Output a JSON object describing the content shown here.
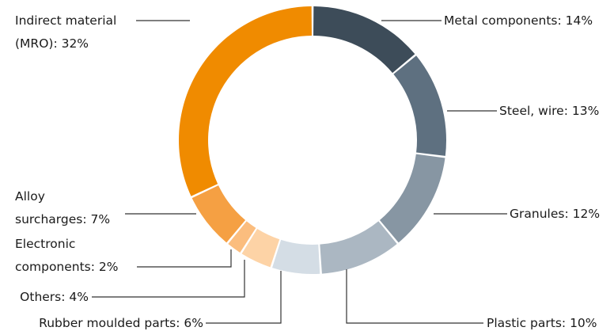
{
  "chart_data": {
    "type": "pie",
    "subtype": "donut",
    "categories": [
      "Metal components",
      "Steel, wire",
      "Granules",
      "Plastic parts",
      "Rubber moulded parts",
      "Others",
      "Electronic components",
      "Alloy surcharges",
      "Indirect material (MRO)"
    ],
    "values": [
      14,
      13,
      12,
      10,
      6,
      4,
      2,
      7,
      32
    ],
    "unit": "%",
    "colors": [
      "#3d4c59",
      "#5e7080",
      "#8796a3",
      "#abb7c2",
      "#d4dde5",
      "#fdd3a6",
      "#fbbd7e",
      "#f5a043",
      "#f08b00"
    ],
    "labels": [
      {
        "lines": [
          "Metal components: 14%"
        ]
      },
      {
        "lines": [
          "Steel, wire: 13%"
        ]
      },
      {
        "lines": [
          "Granules: 12%"
        ]
      },
      {
        "lines": [
          "Plastic parts: 10%"
        ]
      },
      {
        "lines": [
          "Rubber moulded parts: 6%"
        ]
      },
      {
        "lines": [
          "Others: 4%"
        ]
      },
      {
        "lines": [
          "Electronic",
          "components: 2%"
        ]
      },
      {
        "lines": [
          "Alloy",
          "surcharges: 7%"
        ]
      },
      {
        "lines": [
          "Indirect material",
          "(MRO): 32%"
        ]
      }
    ]
  }
}
